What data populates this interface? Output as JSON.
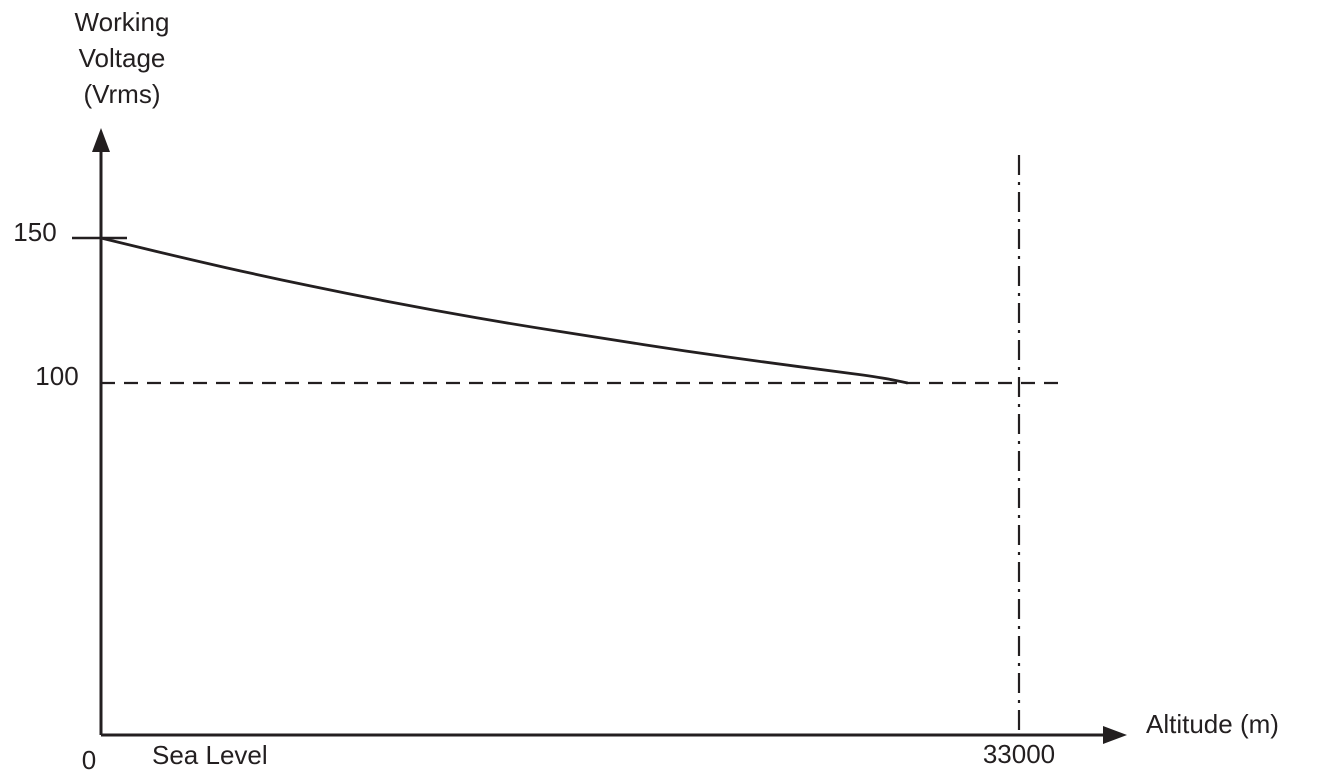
{
  "chart_data": {
    "type": "line",
    "title": "",
    "ylabel_lines": [
      "Working",
      "Voltage",
      "(Vrms)"
    ],
    "xlabel": "Altitude (m)",
    "x_origin_label": "0",
    "x_start_label": "Sea Level",
    "x_tick_labels": [
      "33000"
    ],
    "y_tick_labels": [
      "150",
      "100"
    ],
    "xlim": [
      0,
      36000
    ],
    "ylim": [
      0,
      175
    ],
    "series": [
      {
        "x": [
          0,
          3000,
          6000,
          9000,
          12000,
          15000,
          18000,
          21000,
          24000,
          26000,
          28000,
          29000
        ],
        "values": [
          150,
          143,
          136.5,
          130.5,
          125,
          120,
          115.5,
          111,
          107,
          104.5,
          102,
          100
        ]
      }
    ],
    "reference_lines": [
      {
        "orientation": "horizontal",
        "value": 100,
        "style": "dashed"
      },
      {
        "orientation": "vertical",
        "value": 33000,
        "style": "dash-dot"
      }
    ],
    "colors": {
      "ink": "#231f20",
      "background": "#ffffff"
    },
    "grid": false,
    "legend": "none"
  }
}
